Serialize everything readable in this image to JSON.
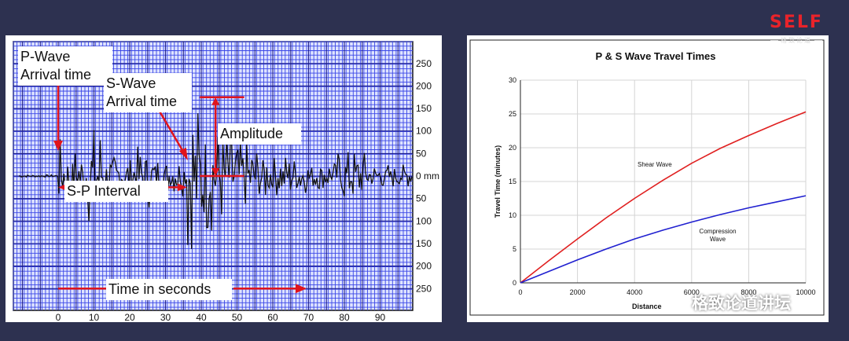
{
  "logo": {
    "brand": "SELF",
    "tagline": "格致论道"
  },
  "watermark": {
    "text": "格致论道讲坛"
  },
  "seismogram": {
    "chart_data": {
      "type": "line",
      "x_ticks": [
        "0",
        "10",
        "20",
        "30",
        "40",
        "50",
        "60",
        "70",
        "80",
        "90"
      ],
      "y_ticks": [
        "250",
        "200",
        "150",
        "100",
        "50",
        "0 mm",
        "50",
        "100",
        "150",
        "200",
        "250"
      ],
      "annotations": {
        "p_wave": [
          "P-Wave",
          "Arrival time"
        ],
        "s_wave": [
          "S-Wave",
          "Arrival time"
        ],
        "amplitude": "Amplitude",
        "sp_interval": "S-P Interval",
        "time": "Time in seconds"
      },
      "p_arrival_s": 0,
      "s_arrival_s": 36,
      "amplitude_mm": 175,
      "xlim": [
        -11,
        99
      ],
      "ylim": [
        -275,
        275
      ]
    }
  },
  "travel": {
    "chart_data": {
      "type": "line",
      "title": "P & S Wave Travel Times",
      "ylabel": "Travel Time (minutes)",
      "xlabel": "Distance",
      "x_ticks": [
        "0",
        "2000",
        "4000",
        "6000",
        "8000",
        "10000"
      ],
      "y_ticks": [
        "0",
        "5",
        "10",
        "15",
        "20",
        "25",
        "30"
      ],
      "xlim": [
        0,
        10000
      ],
      "ylim": [
        0,
        30
      ],
      "grid": true,
      "series": [
        {
          "name": "Shear Wave",
          "color": "#e02020",
          "x": [
            0,
            1000,
            2000,
            3000,
            4000,
            5000,
            6000,
            7000,
            8000,
            9000,
            10000
          ],
          "y": [
            0,
            3.3,
            6.5,
            9.6,
            12.5,
            15.2,
            17.7,
            19.9,
            21.8,
            23.6,
            25.3
          ]
        },
        {
          "name": "Compression Wave",
          "label_lines": [
            "Compression",
            "Wave"
          ],
          "color": "#2020d0",
          "x": [
            0,
            1000,
            2000,
            3000,
            4000,
            5000,
            6000,
            7000,
            8000,
            9000,
            10000
          ],
          "y": [
            0,
            1.7,
            3.4,
            5.0,
            6.5,
            7.8,
            9.0,
            10.1,
            11.1,
            12.0,
            12.9
          ]
        }
      ]
    }
  }
}
